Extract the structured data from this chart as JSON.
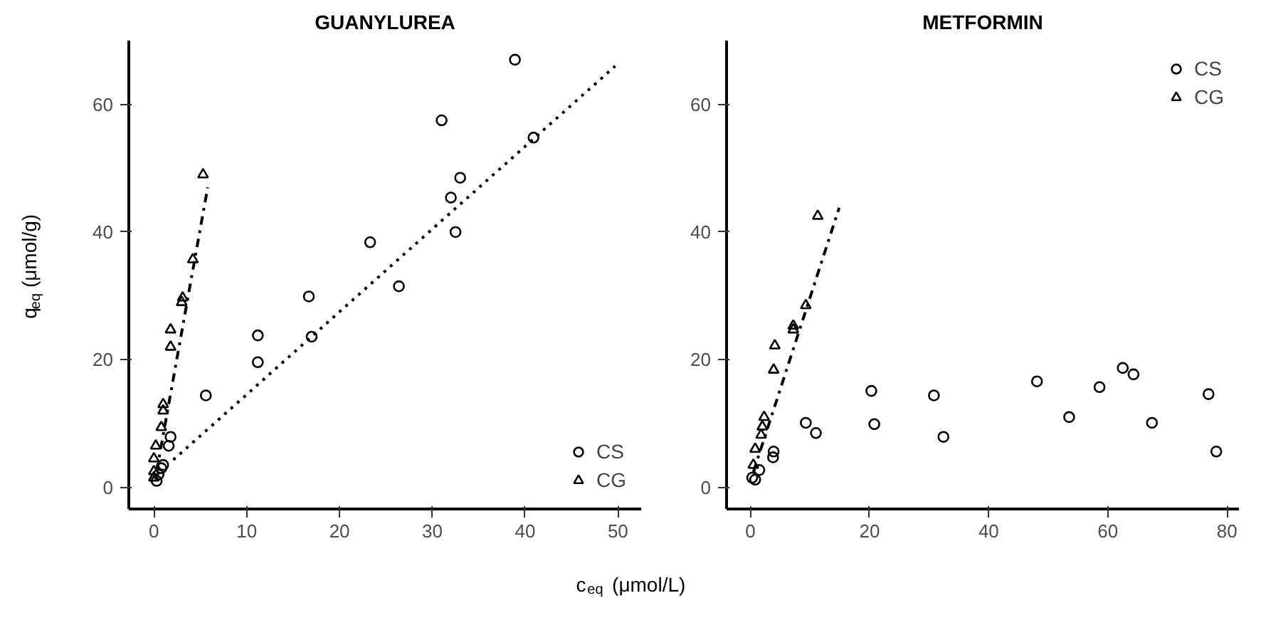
{
  "chart_data": [
    {
      "type": "scatter",
      "title": "GUANYLUREA",
      "xlabel": "c$_{eq}$ (μmol/L)",
      "ylabel": "q$_{eq}$ (μmol/g)",
      "xlim": [
        -2.7,
        52.5
      ],
      "ylim": [
        -3.4,
        70
      ],
      "xticks": [
        0,
        10,
        20,
        30,
        40,
        50
      ],
      "yticks": [
        0,
        20,
        40,
        60
      ],
      "grid": false,
      "legend": "bottom right",
      "series": [
        {
          "name": "CS",
          "color": "#000000",
          "marker": "circle",
          "x": [
            38.9,
            31.0,
            40.9,
            33.0,
            32.0,
            23.3,
            32.5,
            26.4,
            16.7,
            11.2,
            11.2,
            17.0,
            5.6,
            1.8,
            1.6,
            0.3,
            0.5,
            0.8,
            1.0
          ],
          "values": [
            67,
            57.5,
            54.8,
            48.5,
            45.4,
            38.4,
            40,
            31.5,
            29.9,
            23.8,
            19.6,
            23.6,
            14.4,
            7.9,
            6.5,
            1,
            2,
            3,
            3.5
          ]
        },
        {
          "name": "CG",
          "color": "#000000",
          "marker": "triangle",
          "x": [
            5.3,
            4.2,
            3.1,
            3.0,
            1.8,
            1.8,
            1.0,
            1.0,
            0.8,
            0.2,
            0.0,
            0.0,
            0.0
          ],
          "values": [
            49,
            35.7,
            29.7,
            29,
            24.7,
            22,
            13,
            12,
            9.4,
            6.5,
            4.5,
            2.5,
            1.5
          ]
        },
        {
          "type": "line",
          "color": "#000000",
          "line_style": "dotted",
          "x": [
            2.1,
            49.7
          ],
          "values": [
            4.3,
            66
          ]
        },
        {
          "type": "line",
          "color": "#000000",
          "line_style": "dashdot",
          "x": [
            0.3,
            5.8
          ],
          "values": [
            2.5,
            47
          ]
        }
      ]
    },
    {
      "type": "scatter",
      "title": "METFORMIN",
      "xlim": [
        -4,
        82
      ],
      "ylim": [
        -3.4,
        70
      ],
      "xticks": [
        0,
        20,
        40,
        60,
        80
      ],
      "yticks": [
        0,
        20,
        40,
        60
      ],
      "grid": false,
      "legend": "top right",
      "series": [
        {
          "name": "CS",
          "color": "#000000",
          "marker": "circle",
          "x": [
            20.3,
            20.8,
            30.8,
            32.4,
            48.1,
            53.5,
            58.6,
            62.5,
            64.3,
            67.4,
            76.9,
            78.2,
            9.3,
            11.0,
            3.9,
            3.8,
            1.5,
            0.8,
            0.3
          ],
          "values": [
            15.1,
            9.9,
            14.4,
            7.9,
            16.6,
            11,
            15.7,
            18.7,
            17.7,
            10.1,
            14.6,
            5.6,
            10.1,
            8.5,
            5.6,
            4.7,
            2.7,
            1.2,
            1.5
          ]
        },
        {
          "name": "CG",
          "color": "#000000",
          "marker": "triangle",
          "x": [
            11.3,
            9.3,
            7.2,
            7.2,
            4.1,
            3.9,
            2.3,
            2.0,
            1.8,
            0.8,
            0.5
          ],
          "values": [
            42.5,
            28.5,
            25.3,
            24.7,
            22.2,
            18.4,
            11,
            9.5,
            8.2,
            6,
            3.5
          ]
        },
        {
          "type": "line",
          "color": "#000000",
          "line_style": "dashdot",
          "x": [
            0.5,
            14.9
          ],
          "values": [
            2.4,
            43.8
          ]
        }
      ]
    }
  ]
}
